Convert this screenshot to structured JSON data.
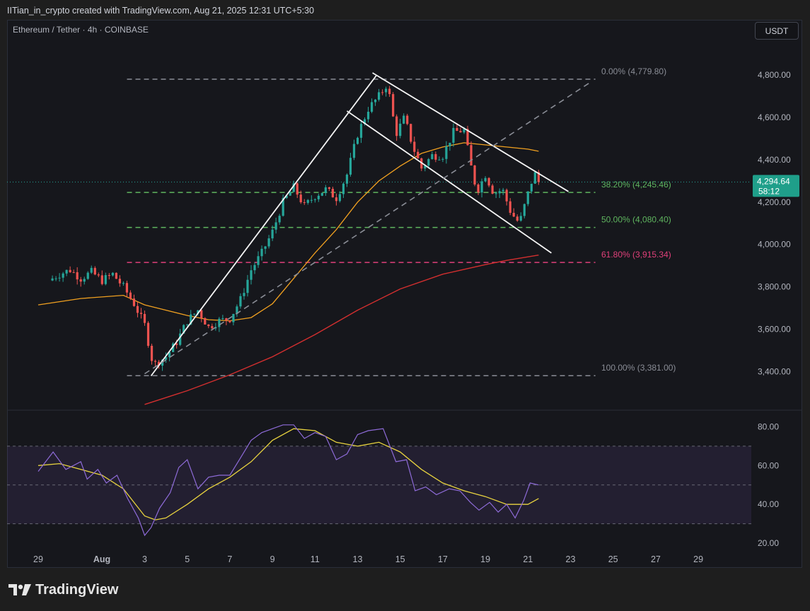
{
  "header": {
    "attribution": "IITian_in_crypto created with TradingView.com, Aug 21, 2025 12:31 UTC+5:30",
    "symbol": "Ethereum / Tether · 4h · COINBASE",
    "currency_button": "USDT"
  },
  "footer": {
    "brand": "TradingView"
  },
  "colors": {
    "bg": "#16171c",
    "up": "#26a69a",
    "down": "#ef5350",
    "ma_fast": "#f0a020",
    "ma_slow": "#d32f2f",
    "rsi": "#8e6bd8",
    "rsi_ma": "#e8d33f",
    "fib_neutral": "#8a8d96",
    "fib_green": "#5fb55f",
    "fib_pink": "#e0407a",
    "price_label": "#1f9f8a"
  },
  "chart_data": [
    {
      "type": "candlestick",
      "title": "Ethereum / Tether · 4h · COINBASE",
      "x_ticks": [
        "29",
        "Aug",
        "3",
        "5",
        "7",
        "9",
        "11",
        "13",
        "15",
        "17",
        "19",
        "21",
        "23",
        "25",
        "27",
        "29"
      ],
      "y_ticks": [
        "4,800.00",
        "4,600.00",
        "4,400.00",
        "4,200.00",
        "4,000.00",
        "3,800.00",
        "3,600.00",
        "3,400.00"
      ],
      "ylim": [
        3240,
        4915
      ],
      "xlim": [
        -2,
        32
      ],
      "last_price": "4,294.64",
      "countdown": "58:12",
      "fib_levels": [
        {
          "label": "0.00% (4,779.80)",
          "value": 4779.8,
          "color": "neutral"
        },
        {
          "label": "38.20% (4,245.46)",
          "value": 4245.46,
          "color": "green"
        },
        {
          "label": "50.00% (4,080.40)",
          "value": 4080.4,
          "color": "green"
        },
        {
          "label": "61.80% (3,915.34)",
          "value": 3915.34,
          "color": "pink"
        },
        {
          "label": "100.00% (3,381.00)",
          "value": 3381.0,
          "color": "neutral"
        }
      ],
      "fib_x_range": [
        3.0,
        24.0
      ],
      "price_keypoints": [
        [
          -1.5,
          3830
        ],
        [
          -1.0,
          3860
        ],
        [
          -0.5,
          3880
        ],
        [
          0.0,
          3840
        ],
        [
          0.5,
          3870
        ],
        [
          1.0,
          3830
        ],
        [
          1.5,
          3860
        ],
        [
          2.0,
          3800
        ],
        [
          2.5,
          3720
        ],
        [
          3.0,
          3620
        ],
        [
          3.4,
          3430
        ],
        [
          4.0,
          3470
        ],
        [
          4.5,
          3540
        ],
        [
          5.0,
          3640
        ],
        [
          5.5,
          3690
        ],
        [
          6.0,
          3610
        ],
        [
          6.5,
          3640
        ],
        [
          7.0,
          3650
        ],
        [
          7.5,
          3740
        ],
        [
          8.0,
          3880
        ],
        [
          8.5,
          3960
        ],
        [
          9.0,
          4060
        ],
        [
          9.5,
          4200
        ],
        [
          10.0,
          4270
        ],
        [
          10.5,
          4180
        ],
        [
          11.0,
          4230
        ],
        [
          11.5,
          4260
        ],
        [
          12.0,
          4220
        ],
        [
          12.5,
          4330
        ],
        [
          13.0,
          4520
        ],
        [
          13.5,
          4640
        ],
        [
          14.0,
          4700
        ],
        [
          14.4,
          4760
        ],
        [
          14.8,
          4520
        ],
        [
          15.2,
          4600
        ],
        [
          15.6,
          4460
        ],
        [
          16.0,
          4360
        ],
        [
          16.5,
          4420
        ],
        [
          17.0,
          4420
        ],
        [
          17.5,
          4530
        ],
        [
          18.0,
          4540
        ],
        [
          18.3,
          4380
        ],
        [
          18.6,
          4250
        ],
        [
          19.0,
          4330
        ],
        [
          19.4,
          4240
        ],
        [
          19.8,
          4260
        ],
        [
          20.2,
          4150
        ],
        [
          20.6,
          4100
        ],
        [
          21.0,
          4240
        ],
        [
          21.3,
          4340
        ],
        [
          21.5,
          4295
        ]
      ],
      "ma_fast_keypoints": [
        [
          -2,
          3715
        ],
        [
          0,
          3745
        ],
        [
          2,
          3760
        ],
        [
          3,
          3715
        ],
        [
          4,
          3690
        ],
        [
          5,
          3665
        ],
        [
          6,
          3645
        ],
        [
          7,
          3640
        ],
        [
          8,
          3655
        ],
        [
          9,
          3720
        ],
        [
          10,
          3840
        ],
        [
          11,
          3960
        ],
        [
          12,
          4070
        ],
        [
          13,
          4200
        ],
        [
          14,
          4300
        ],
        [
          15,
          4370
        ],
        [
          16,
          4430
        ],
        [
          17,
          4460
        ],
        [
          18,
          4480
        ],
        [
          19,
          4470
        ],
        [
          20,
          4460
        ],
        [
          21,
          4450
        ],
        [
          21.5,
          4440
        ]
      ],
      "ma_slow_keypoints": [
        [
          3.0,
          3245
        ],
        [
          5,
          3310
        ],
        [
          7,
          3385
        ],
        [
          9,
          3470
        ],
        [
          11,
          3575
        ],
        [
          13,
          3690
        ],
        [
          15,
          3790
        ],
        [
          17,
          3860
        ],
        [
          19,
          3905
        ],
        [
          20,
          3925
        ],
        [
          21.5,
          3950
        ]
      ],
      "trendlines": [
        {
          "from": [
            3.3,
            3380
          ],
          "to": [
            13.9,
            4800
          ],
          "style": "solid"
        },
        {
          "from": [
            13.7,
            4810
          ],
          "to": [
            22.9,
            4250
          ],
          "style": "solid"
        },
        {
          "from": [
            12.5,
            4630
          ],
          "to": [
            22.1,
            3960
          ],
          "style": "solid"
        },
        {
          "from": [
            3.0,
            3390
          ],
          "to": [
            24.0,
            4770
          ],
          "style": "dashed"
        }
      ]
    },
    {
      "type": "line",
      "title": "",
      "y_ticks": [
        "80.00",
        "60.00",
        "40.00",
        "20.00"
      ],
      "ylim": [
        15,
        85
      ],
      "band": [
        30,
        70
      ],
      "midline": 50,
      "rsi_keypoints": [
        [
          -2,
          57
        ],
        [
          -1.3,
          67
        ],
        [
          -0.7,
          58
        ],
        [
          0,
          62
        ],
        [
          0.3,
          53
        ],
        [
          0.8,
          58
        ],
        [
          1.2,
          51
        ],
        [
          1.7,
          55
        ],
        [
          2.2,
          43
        ],
        [
          2.7,
          33
        ],
        [
          3.0,
          24
        ],
        [
          3.3,
          28
        ],
        [
          3.7,
          38
        ],
        [
          4.2,
          46
        ],
        [
          4.6,
          59
        ],
        [
          5.0,
          63
        ],
        [
          5.5,
          48
        ],
        [
          6.0,
          54
        ],
        [
          6.5,
          55
        ],
        [
          7.0,
          55
        ],
        [
          7.5,
          64
        ],
        [
          8.0,
          73
        ],
        [
          8.5,
          77
        ],
        [
          9.0,
          79
        ],
        [
          9.5,
          81
        ],
        [
          10.0,
          81
        ],
        [
          10.5,
          74
        ],
        [
          11.0,
          77
        ],
        [
          11.5,
          75
        ],
        [
          12.0,
          63
        ],
        [
          12.5,
          66
        ],
        [
          13.0,
          76
        ],
        [
          13.5,
          78
        ],
        [
          14.2,
          79
        ],
        [
          14.8,
          62
        ],
        [
          15.3,
          63
        ],
        [
          15.7,
          47
        ],
        [
          16.2,
          49
        ],
        [
          16.7,
          45
        ],
        [
          17.3,
          48
        ],
        [
          17.8,
          47
        ],
        [
          18.3,
          41
        ],
        [
          18.7,
          37
        ],
        [
          19.2,
          41
        ],
        [
          19.6,
          36
        ],
        [
          20.0,
          40
        ],
        [
          20.4,
          33
        ],
        [
          20.8,
          42
        ],
        [
          21.1,
          51
        ],
        [
          21.5,
          50
        ]
      ],
      "rsi_ma_keypoints": [
        [
          -2,
          60
        ],
        [
          -1,
          61
        ],
        [
          0,
          58
        ],
        [
          1,
          55
        ],
        [
          2,
          48
        ],
        [
          3,
          34
        ],
        [
          3.5,
          32
        ],
        [
          4,
          33
        ],
        [
          5,
          40
        ],
        [
          6,
          48
        ],
        [
          7,
          54
        ],
        [
          8,
          62
        ],
        [
          9,
          73
        ],
        [
          10,
          79
        ],
        [
          11,
          78
        ],
        [
          12,
          72
        ],
        [
          13,
          70
        ],
        [
          14,
          72
        ],
        [
          15,
          67
        ],
        [
          16,
          58
        ],
        [
          17,
          51
        ],
        [
          18,
          47
        ],
        [
          19,
          44
        ],
        [
          20,
          40
        ],
        [
          21,
          40
        ],
        [
          21.5,
          43
        ]
      ]
    }
  ]
}
